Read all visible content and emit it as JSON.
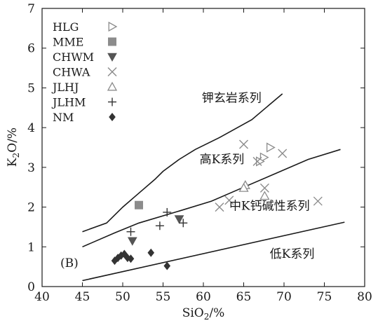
{
  "chart_data": {
    "type": "scatter",
    "panel_label": "(B)",
    "xlabel": {
      "base": "SiO",
      "sub": "2",
      "unit": "/%"
    },
    "ylabel": {
      "base": "K",
      "sub": "2",
      "tail": "O/%"
    },
    "xlim": [
      40,
      80
    ],
    "ylim": [
      0,
      7
    ],
    "xticks": [
      40,
      45,
      50,
      55,
      60,
      65,
      70,
      75,
      80
    ],
    "yticks": [
      0,
      1,
      2,
      3,
      4,
      5,
      6,
      7
    ],
    "grid": false,
    "legend_position": "top-left",
    "series": [
      {
        "name": "HLG",
        "marker": "triangle-right-open",
        "color": "#8c8c8c",
        "points": [
          [
            68.3,
            3.5
          ],
          [
            67.5,
            3.25
          ],
          [
            67.0,
            3.15
          ]
        ]
      },
      {
        "name": "MME",
        "marker": "square",
        "color": "#8c8c8c",
        "points": [
          [
            52.0,
            2.05
          ]
        ]
      },
      {
        "name": "CHWM",
        "marker": "triangle-down",
        "color": "#555555",
        "points": [
          [
            51.2,
            1.15
          ],
          [
            57.0,
            1.7
          ]
        ]
      },
      {
        "name": "CHWA",
        "marker": "x",
        "color": "#8c8c8c",
        "points": [
          [
            65.0,
            3.58
          ],
          [
            66.7,
            3.15
          ],
          [
            69.8,
            3.35
          ],
          [
            67.6,
            2.48
          ],
          [
            62.0,
            2.0
          ],
          [
            63.2,
            2.17
          ],
          [
            74.2,
            2.15
          ]
        ]
      },
      {
        "name": "JLHJ",
        "marker": "triangle-up-open",
        "color": "#8c8c8c",
        "points": [
          [
            65.2,
            2.55
          ],
          [
            65.0,
            2.48
          ],
          [
            67.6,
            2.28
          ]
        ]
      },
      {
        "name": "JLHM",
        "marker": "plus",
        "color": "#333333",
        "points": [
          [
            55.5,
            1.87
          ],
          [
            54.6,
            1.53
          ],
          [
            57.5,
            1.6
          ],
          [
            51.0,
            1.38
          ]
        ]
      },
      {
        "name": "NM",
        "marker": "diamond",
        "color": "#333333",
        "points": [
          [
            49.0,
            0.65
          ],
          [
            49.4,
            0.72
          ],
          [
            49.8,
            0.78
          ],
          [
            50.2,
            0.82
          ],
          [
            50.6,
            0.72
          ],
          [
            51.0,
            0.7
          ],
          [
            53.5,
            0.85
          ],
          [
            55.5,
            0.52
          ]
        ]
      }
    ],
    "boundary_lines": [
      {
        "name": "upper",
        "points": [
          [
            45.0,
            1.38
          ],
          [
            48.0,
            1.6
          ],
          [
            50.0,
            2.0
          ],
          [
            52.0,
            2.35
          ],
          [
            54.0,
            2.7
          ],
          [
            55.0,
            2.9
          ],
          [
            57.0,
            3.2
          ],
          [
            59.0,
            3.45
          ],
          [
            62.0,
            3.75
          ],
          [
            66.0,
            4.2
          ],
          [
            69.8,
            4.85
          ]
        ]
      },
      {
        "name": "middle",
        "points": [
          [
            45.0,
            1.0
          ],
          [
            49.0,
            1.35
          ],
          [
            52.0,
            1.6
          ],
          [
            57.0,
            1.9
          ],
          [
            61.0,
            2.15
          ],
          [
            65.0,
            2.5
          ],
          [
            69.0,
            2.85
          ],
          [
            73.0,
            3.2
          ],
          [
            77.0,
            3.45
          ]
        ]
      },
      {
        "name": "lower",
        "points": [
          [
            45.0,
            0.15
          ],
          [
            77.5,
            1.62
          ]
        ]
      }
    ],
    "region_labels": [
      {
        "text": "钾玄岩系列",
        "x": 63.5,
        "y": 4.65
      },
      {
        "text": "高K系列",
        "x": 62.3,
        "y": 3.1
      },
      {
        "text": "中K钙碱性系列",
        "x": 68.2,
        "y": 1.93
      },
      {
        "text": "低K系列",
        "x": 71.0,
        "y": 0.72
      }
    ]
  }
}
